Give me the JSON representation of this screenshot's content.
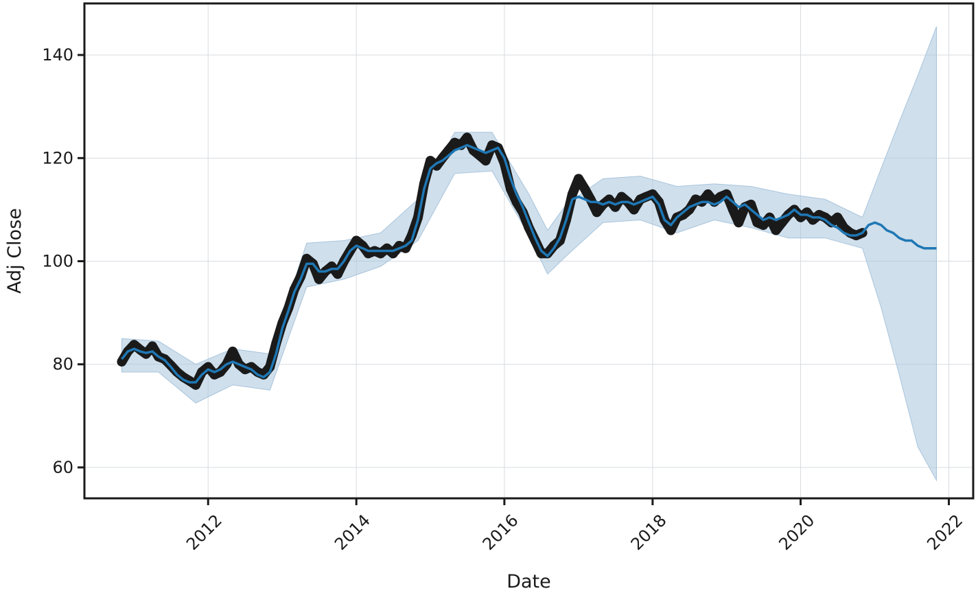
{
  "chart_data": {
    "type": "line",
    "title": "",
    "xlabel": "Date",
    "ylabel": "Adj Close",
    "x_axis_type": "date",
    "xlim": [
      "2010-05-01",
      "2022-05-01"
    ],
    "ylim": [
      54,
      150
    ],
    "grid": true,
    "legend": "none",
    "x_ticks": [
      {
        "value": "2012-01-01",
        "label": "2012"
      },
      {
        "value": "2014-01-01",
        "label": "2014"
      },
      {
        "value": "2016-01-01",
        "label": "2016"
      },
      {
        "value": "2018-01-01",
        "label": "2018"
      },
      {
        "value": "2020-01-01",
        "label": "2020"
      },
      {
        "value": "2022-01-01",
        "label": "2022"
      }
    ],
    "y_ticks": [
      {
        "value": 60,
        "label": "60"
      },
      {
        "value": 80,
        "label": "80"
      },
      {
        "value": 100,
        "label": "100"
      },
      {
        "value": 120,
        "label": "120"
      },
      {
        "value": 140,
        "label": "140"
      }
    ],
    "colors": {
      "observed": "#1a1a1a",
      "forecast": "#1f77b4",
      "band": "#a8c4dc"
    },
    "series": [
      {
        "kind": "observed",
        "x": [
          "2010-11-01",
          "2010-12-01",
          "2011-01-01",
          "2011-02-01",
          "2011-03-01",
          "2011-04-01",
          "2011-05-01",
          "2011-06-01",
          "2011-07-01",
          "2011-08-01",
          "2011-09-01",
          "2011-10-01",
          "2011-11-01",
          "2011-12-01",
          "2012-01-01",
          "2012-02-01",
          "2012-03-01",
          "2012-04-01",
          "2012-05-01",
          "2012-06-01",
          "2012-07-01",
          "2012-08-01",
          "2012-09-01",
          "2012-10-01",
          "2012-11-01",
          "2012-12-01",
          "2013-01-01",
          "2013-02-01",
          "2013-03-01",
          "2013-04-01",
          "2013-05-01",
          "2013-06-01",
          "2013-07-01",
          "2013-08-01",
          "2013-09-01",
          "2013-10-01",
          "2013-11-01",
          "2013-12-01",
          "2014-01-01",
          "2014-02-01",
          "2014-03-01",
          "2014-04-01",
          "2014-05-01",
          "2014-06-01",
          "2014-07-01",
          "2014-08-01",
          "2014-09-01",
          "2014-10-01",
          "2014-11-01",
          "2014-12-01",
          "2015-01-01",
          "2015-02-01",
          "2015-03-01",
          "2015-04-01",
          "2015-05-01",
          "2015-06-01",
          "2015-07-01",
          "2015-08-01",
          "2015-09-01",
          "2015-10-01",
          "2015-11-01",
          "2015-12-01",
          "2016-01-01",
          "2016-02-01",
          "2016-03-01",
          "2016-04-01",
          "2016-05-01",
          "2016-06-01",
          "2016-07-01",
          "2016-08-01",
          "2016-09-01",
          "2016-10-01",
          "2016-11-01",
          "2016-12-01",
          "2017-01-01",
          "2017-02-01",
          "2017-03-01",
          "2017-04-01",
          "2017-05-01",
          "2017-06-01",
          "2017-07-01",
          "2017-08-01",
          "2017-09-01",
          "2017-10-01",
          "2017-11-01",
          "2017-12-01",
          "2018-01-01",
          "2018-02-01",
          "2018-03-01",
          "2018-04-01",
          "2018-05-01",
          "2018-06-01",
          "2018-07-01",
          "2018-08-01",
          "2018-09-01",
          "2018-10-01",
          "2018-11-01",
          "2018-12-01",
          "2019-01-01",
          "2019-02-01",
          "2019-03-01",
          "2019-04-01",
          "2019-05-01",
          "2019-06-01",
          "2019-07-01",
          "2019-08-01",
          "2019-09-01",
          "2019-10-01",
          "2019-11-01",
          "2019-12-01",
          "2020-01-01",
          "2020-02-01",
          "2020-03-01",
          "2020-04-01",
          "2020-05-01",
          "2020-06-01",
          "2020-07-01",
          "2020-08-01",
          "2020-09-01",
          "2020-10-01",
          "2020-11-01"
        ],
        "y": [
          80.5,
          82.5,
          83.8,
          82.8,
          82.0,
          83.5,
          81.5,
          81.0,
          79.8,
          78.5,
          77.5,
          76.8,
          76.0,
          78.5,
          79.5,
          78.0,
          78.5,
          80.0,
          82.5,
          80.0,
          79.0,
          79.5,
          78.5,
          78.0,
          79.5,
          84.0,
          88.0,
          91.0,
          94.5,
          97.0,
          100.5,
          99.5,
          96.5,
          98.0,
          99.0,
          97.5,
          100.0,
          102.0,
          104.0,
          103.0,
          101.5,
          102.0,
          101.5,
          102.5,
          101.5,
          103.0,
          102.5,
          105.0,
          108.5,
          115.0,
          119.5,
          118.5,
          120.0,
          121.5,
          123.0,
          122.5,
          124.0,
          121.5,
          120.5,
          119.5,
          122.5,
          122.0,
          119.0,
          114.0,
          111.5,
          109.5,
          106.5,
          104.0,
          101.5,
          101.5,
          103.0,
          104.0,
          108.0,
          113.0,
          116.0,
          114.0,
          112.0,
          109.5,
          111.0,
          112.0,
          110.5,
          112.5,
          111.5,
          110.0,
          112.0,
          112.5,
          113.0,
          111.5,
          108.0,
          106.0,
          108.5,
          109.0,
          110.0,
          112.0,
          111.5,
          113.0,
          111.5,
          112.5,
          113.0,
          110.0,
          107.5,
          110.5,
          111.0,
          107.5,
          107.0,
          108.5,
          106.0,
          107.5,
          109.0,
          110.0,
          108.5,
          109.5,
          108.0,
          109.0,
          108.5,
          107.5,
          108.5,
          106.5,
          105.5,
          105.0,
          105.5
        ]
      },
      {
        "kind": "forecast",
        "x": [
          "2010-11-01",
          "2010-12-01",
          "2011-01-01",
          "2011-02-01",
          "2011-03-01",
          "2011-04-01",
          "2011-05-01",
          "2011-06-01",
          "2011-07-01",
          "2011-08-01",
          "2011-09-01",
          "2011-10-01",
          "2011-11-01",
          "2011-12-01",
          "2012-01-01",
          "2012-02-01",
          "2012-03-01",
          "2012-04-01",
          "2012-05-01",
          "2012-06-01",
          "2012-07-01",
          "2012-08-01",
          "2012-09-01",
          "2012-10-01",
          "2012-11-01",
          "2012-12-01",
          "2013-01-01",
          "2013-02-01",
          "2013-03-01",
          "2013-04-01",
          "2013-05-01",
          "2013-06-01",
          "2013-07-01",
          "2013-08-01",
          "2013-09-01",
          "2013-10-01",
          "2013-11-01",
          "2013-12-01",
          "2014-01-01",
          "2014-02-01",
          "2014-03-01",
          "2014-04-01",
          "2014-05-01",
          "2014-06-01",
          "2014-07-01",
          "2014-08-01",
          "2014-09-01",
          "2014-10-01",
          "2014-11-01",
          "2014-12-01",
          "2015-01-01",
          "2015-02-01",
          "2015-03-01",
          "2015-04-01",
          "2015-05-01",
          "2015-06-01",
          "2015-07-01",
          "2015-08-01",
          "2015-09-01",
          "2015-10-01",
          "2015-11-01",
          "2015-12-01",
          "2016-01-01",
          "2016-02-01",
          "2016-03-01",
          "2016-04-01",
          "2016-05-01",
          "2016-06-01",
          "2016-07-01",
          "2016-08-01",
          "2016-09-01",
          "2016-10-01",
          "2016-11-01",
          "2016-12-01",
          "2017-01-01",
          "2017-02-01",
          "2017-03-01",
          "2017-04-01",
          "2017-05-01",
          "2017-06-01",
          "2017-07-01",
          "2017-08-01",
          "2017-09-01",
          "2017-10-01",
          "2017-11-01",
          "2017-12-01",
          "2018-01-01",
          "2018-02-01",
          "2018-03-01",
          "2018-04-01",
          "2018-05-01",
          "2018-06-01",
          "2018-07-01",
          "2018-08-01",
          "2018-09-01",
          "2018-10-01",
          "2018-11-01",
          "2018-12-01",
          "2019-01-01",
          "2019-02-01",
          "2019-03-01",
          "2019-04-01",
          "2019-05-01",
          "2019-06-01",
          "2019-07-01",
          "2019-08-01",
          "2019-09-01",
          "2019-10-01",
          "2019-11-01",
          "2019-12-01",
          "2020-01-01",
          "2020-02-01",
          "2020-03-01",
          "2020-04-01",
          "2020-05-01",
          "2020-06-01",
          "2020-07-01",
          "2020-08-01",
          "2020-09-01",
          "2020-10-01",
          "2020-11-01",
          "2020-12-01",
          "2021-01-01",
          "2021-02-01",
          "2021-03-01",
          "2021-04-01",
          "2021-05-01",
          "2021-06-01",
          "2021-07-01",
          "2021-08-01",
          "2021-09-01",
          "2021-10-01",
          "2021-11-01"
        ],
        "y": [
          81.0,
          82.5,
          83.0,
          82.5,
          82.2,
          82.5,
          81.5,
          80.8,
          79.5,
          78.0,
          77.0,
          76.5,
          76.5,
          78.0,
          79.0,
          78.5,
          79.0,
          80.0,
          80.5,
          80.0,
          79.5,
          79.0,
          78.0,
          77.5,
          78.5,
          82.0,
          87.0,
          90.5,
          94.0,
          96.5,
          99.5,
          99.5,
          98.0,
          98.0,
          98.5,
          98.5,
          100.0,
          102.0,
          103.0,
          102.5,
          102.0,
          102.0,
          102.0,
          102.0,
          102.0,
          102.5,
          103.0,
          104.0,
          108.0,
          114.0,
          118.0,
          119.0,
          119.5,
          120.5,
          121.5,
          122.0,
          122.5,
          122.0,
          121.5,
          121.0,
          121.5,
          122.0,
          120.0,
          116.0,
          113.0,
          110.5,
          107.5,
          104.5,
          102.0,
          101.0,
          102.5,
          104.5,
          108.0,
          112.0,
          112.5,
          112.0,
          111.5,
          111.5,
          111.0,
          111.5,
          111.0,
          111.5,
          111.5,
          111.0,
          111.5,
          112.0,
          112.5,
          111.0,
          108.0,
          107.0,
          108.5,
          109.5,
          110.5,
          111.0,
          111.5,
          111.5,
          111.0,
          111.5,
          112.5,
          111.5,
          110.5,
          111.0,
          110.0,
          109.0,
          108.0,
          108.5,
          108.0,
          108.5,
          109.0,
          110.0,
          109.0,
          109.0,
          108.5,
          108.5,
          108.0,
          107.0,
          106.5,
          105.5,
          105.0,
          105.0,
          105.5,
          107.0,
          107.5,
          107.0,
          106.0,
          105.5,
          104.5,
          104.0,
          104.0,
          103.0,
          102.5,
          102.5,
          102.5
        ]
      },
      {
        "kind": "band",
        "x": [
          "2010-11-01",
          "2011-05-01",
          "2011-11-01",
          "2012-05-01",
          "2012-11-01",
          "2013-05-01",
          "2013-11-01",
          "2014-05-01",
          "2014-11-01",
          "2015-05-01",
          "2015-11-01",
          "2016-05-01",
          "2016-08-01",
          "2016-11-01",
          "2017-05-01",
          "2017-11-01",
          "2018-05-01",
          "2018-11-01",
          "2019-05-01",
          "2019-11-01",
          "2020-05-01",
          "2020-11-01",
          "2021-02-01",
          "2021-05-01",
          "2021-08-01",
          "2021-11-01"
        ],
        "lower": [
          78.5,
          78.5,
          72.5,
          76.0,
          75.0,
          95.0,
          96.5,
          99.0,
          104.0,
          117.0,
          117.5,
          105.0,
          97.5,
          101.0,
          107.5,
          108.0,
          105.5,
          108.0,
          106.5,
          104.5,
          104.5,
          102.5,
          91.0,
          78.0,
          64.0,
          57.5
        ],
        "upper": [
          85.0,
          84.5,
          80.0,
          83.0,
          82.0,
          103.5,
          104.0,
          105.5,
          112.0,
          125.0,
          125.0,
          113.0,
          106.0,
          111.0,
          116.0,
          116.5,
          114.5,
          115.0,
          114.5,
          113.0,
          112.0,
          108.5,
          118.0,
          127.0,
          136.0,
          145.5
        ]
      }
    ]
  }
}
